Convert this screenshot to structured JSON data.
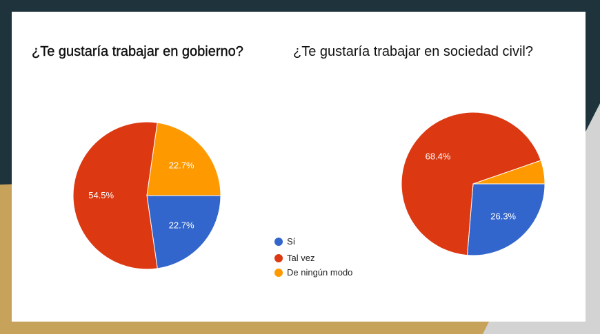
{
  "colors": {
    "si": "#3366cc",
    "tal_vez": "#dc3912",
    "ningun": "#ff9900",
    "background_dark": "#1e333b",
    "background_gold": "#c7a25a",
    "background_gray": "#d3d3d3"
  },
  "legend": [
    {
      "label": "Sí",
      "color": "#3366cc"
    },
    {
      "label": "Tal vez",
      "color": "#dc3912"
    },
    {
      "label": "De ningún modo",
      "color": "#ff9900"
    }
  ],
  "chart_data": [
    {
      "type": "pie",
      "title": "¿Te gustaría trabajar en gobierno?",
      "categories": [
        "Sí",
        "Tal vez",
        "De ningún modo"
      ],
      "values": [
        22.7,
        54.5,
        22.7
      ],
      "value_labels": [
        "22.7%",
        "54.5%",
        "22.7%"
      ],
      "colors": [
        "#3366cc",
        "#dc3912",
        "#ff9900"
      ]
    },
    {
      "type": "pie",
      "title": "¿Te gustaría trabajar en sociedad civil?",
      "categories": [
        "Sí",
        "Tal vez",
        "De ningún modo"
      ],
      "values": [
        26.3,
        68.4,
        5.3
      ],
      "value_labels": [
        "26.3%",
        "68.4%",
        ""
      ],
      "colors": [
        "#3366cc",
        "#dc3912",
        "#ff9900"
      ]
    }
  ]
}
